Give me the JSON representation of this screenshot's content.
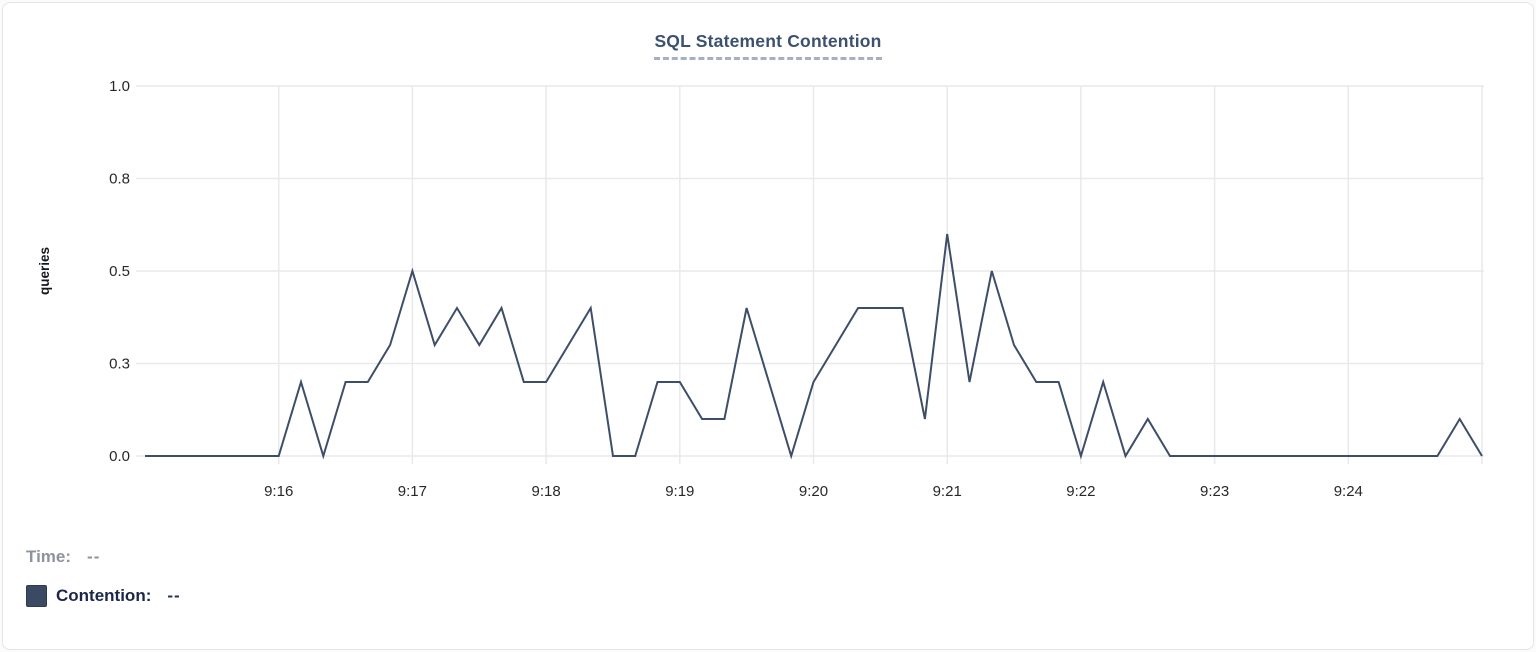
{
  "card": {
    "title": "SQL Statement Contention"
  },
  "colors": {
    "line": "#3e4d68",
    "grid": "#e9e9ec",
    "tick_text": "#26282b",
    "axis_label_text": "#15181d",
    "title_text": "#3c5170",
    "title_underline": "#a7aec6",
    "time_text": "#8e939d",
    "contention_text": "#1c2747",
    "contention_value_text": "#253358",
    "swatch_fill": "#3b4a63",
    "swatch_border": "#2e3b52"
  },
  "tooltip_panel": {
    "time_label": "Time:",
    "time_value": "--",
    "series_label": "Contention:",
    "series_value": "--"
  },
  "chart_data": {
    "type": "line",
    "title": "SQL Statement Contention",
    "xlabel": "",
    "ylabel": "queries",
    "x_start": "9:15:00",
    "x_end": "9:25:00",
    "x_step_seconds": 10,
    "ylim": [
      0,
      1.0
    ],
    "grid": true,
    "legend_position": "bottom-left",
    "ytick_values": [
      0,
      0.25,
      0.5,
      0.75,
      1.0
    ],
    "ytick_labels": [
      "0.0",
      "0.3",
      "0.5",
      "0.8",
      "1.0"
    ],
    "xticks": [
      {
        "index": 6,
        "label": "9:16"
      },
      {
        "index": 12,
        "label": "9:17"
      },
      {
        "index": 18,
        "label": "9:18"
      },
      {
        "index": 24,
        "label": "9:19"
      },
      {
        "index": 30,
        "label": "9:20"
      },
      {
        "index": 36,
        "label": "9:21"
      },
      {
        "index": 42,
        "label": "9:22"
      },
      {
        "index": 48,
        "label": "9:23"
      },
      {
        "index": 54,
        "label": "9:24"
      },
      {
        "index": 60,
        "label": ""
      }
    ],
    "series": [
      {
        "name": "Contention",
        "unit": "queries",
        "values": [
          0,
          0,
          0,
          0,
          0,
          0,
          0,
          0.2,
          0,
          0.2,
          0.2,
          0.3,
          0.5,
          0.3,
          0.4,
          0.3,
          0.4,
          0.2,
          0.2,
          0.3,
          0.4,
          0,
          0,
          0.2,
          0.2,
          0.1,
          0.1,
          0.4,
          0.2,
          0,
          0.2,
          0.3,
          0.4,
          0.4,
          0.4,
          0.1,
          0.6,
          0.2,
          0.5,
          0.3,
          0.2,
          0.2,
          0,
          0.2,
          0,
          0.1,
          0,
          0,
          0,
          0,
          0,
          0,
          0,
          0,
          0,
          0,
          0,
          0,
          0,
          0.1,
          0
        ]
      }
    ]
  }
}
